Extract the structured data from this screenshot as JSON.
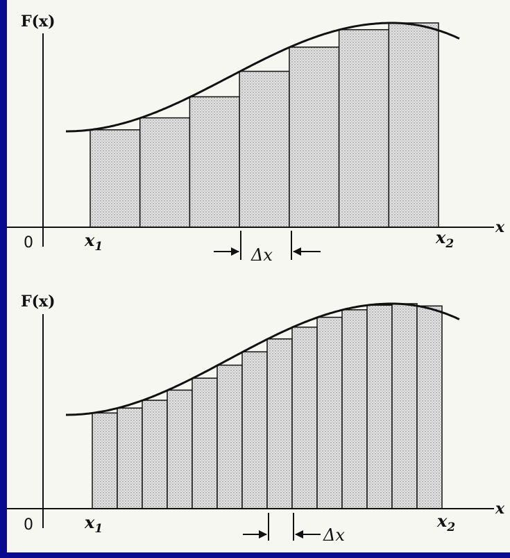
{
  "panels": [
    {
      "ylabel": "F(x)",
      "xlabel": "x",
      "origin": "0",
      "x1": "x",
      "x1_sub": "1",
      "x2": "x",
      "x2_sub": "2",
      "delta": "Δx",
      "n_rects": 7
    },
    {
      "ylabel": "F(x)",
      "xlabel": "x",
      "origin": "0",
      "x1": "x",
      "x1_sub": "1",
      "x2": "x",
      "x2_sub": "2",
      "delta": "Δx",
      "n_rects": 14
    }
  ],
  "colors": {
    "frame": "#0a0a90",
    "paper": "#f7f7f2",
    "fill": "#d6d6d6",
    "ink": "#111111"
  }
}
